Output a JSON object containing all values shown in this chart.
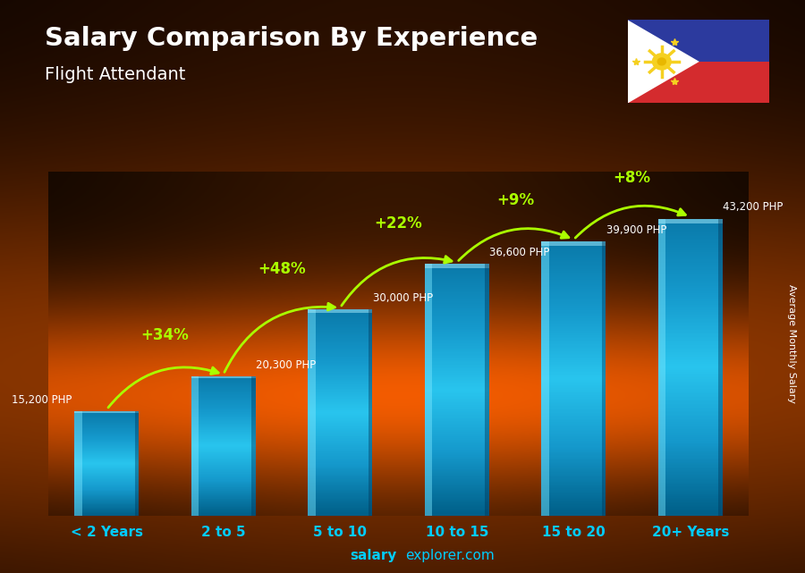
{
  "title": "Salary Comparison By Experience",
  "subtitle": "Flight Attendant",
  "categories": [
    "< 2 Years",
    "2 to 5",
    "5 to 10",
    "10 to 15",
    "15 to 20",
    "20+ Years"
  ],
  "values": [
    15200,
    20300,
    30000,
    36600,
    39900,
    43200
  ],
  "labels": [
    "15,200 PHP",
    "20,300 PHP",
    "30,000 PHP",
    "36,600 PHP",
    "39,900 PHP",
    "43,200 PHP"
  ],
  "pct_changes": [
    "+34%",
    "+48%",
    "+22%",
    "+9%",
    "+8%"
  ],
  "bar_color": "#29b8e8",
  "bar_highlight": "#7de8ff",
  "bar_shadow": "#0077aa",
  "bg_dark": "#0d0500",
  "bg_mid": "#7a3500",
  "bg_light": "#c86000",
  "title_color": "#ffffff",
  "subtitle_color": "#ffffff",
  "label_color": "#ffffff",
  "pct_color": "#aaff00",
  "xlabel_color": "#00ccff",
  "watermark_salary": "salary",
  "watermark_rest": "explorer.com",
  "ylabel_text": "Average Monthly Salary",
  "ymax": 50000,
  "flag_blue": "#2c3a9e",
  "flag_red": "#d42b2e",
  "flag_white": "#ffffff",
  "flag_yellow": "#f5d020"
}
